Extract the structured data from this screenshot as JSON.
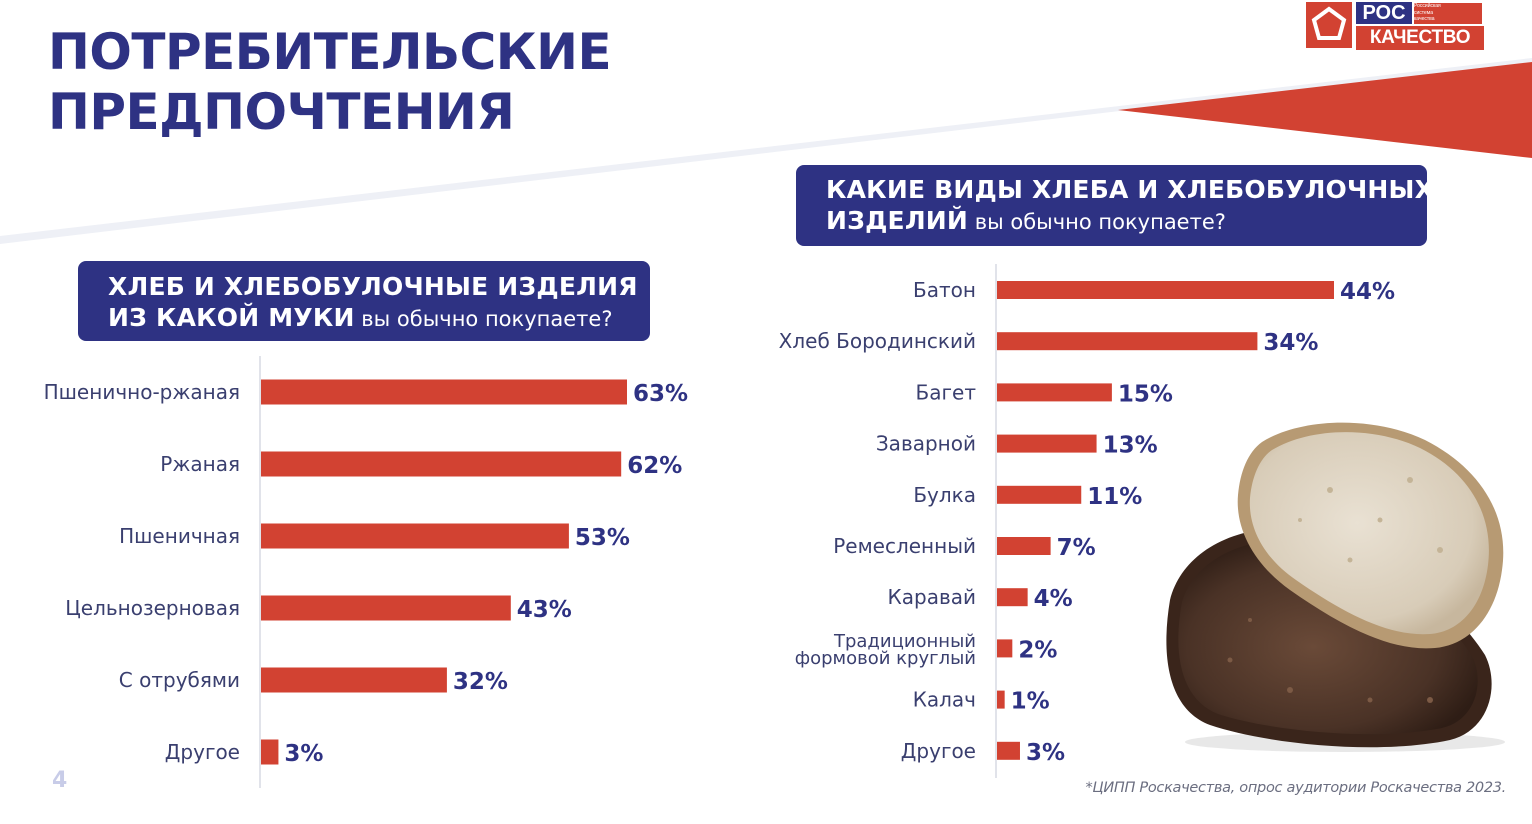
{
  "colors": {
    "navy": "#2e3283",
    "red": "#d24232",
    "label": "#3a3f6f",
    "page_number": "#c8cce8"
  },
  "title": {
    "line1": "ПОТРЕБИТЕЛЬСКИЕ",
    "line2": "ПРЕДПОЧТЕНИЯ"
  },
  "logo": {
    "ros": "РОС",
    "kachestvo": "КАЧЕСТВО",
    "small_line1": "Российская",
    "small_line2": "система",
    "small_line3": "качества"
  },
  "left_question": {
    "line1": "ХЛЕБ И ХЛЕБОБУЛОЧНЫЕ ИЗДЕЛИЯ",
    "line2_bold": "ИЗ КАКОЙ МУКИ",
    "line2_regular": " вы обычно покупаете?"
  },
  "right_question": {
    "line1": "КАКИЕ ВИДЫ ХЛЕБА И ХЛЕБОБУЛОЧНЫХ",
    "line2_bold": "ИЗДЕЛИЙ",
    "line2_regular": " вы обычно покупаете?"
  },
  "chart_data": [
    {
      "type": "bar",
      "orientation": "horizontal",
      "categories": [
        "Пшенично-ржаная",
        "Ржаная",
        "Пшеничная",
        "Цельнозерновая",
        "С отрубями",
        "Другое"
      ],
      "values": [
        63,
        62,
        53,
        43,
        32,
        3
      ],
      "value_labels": [
        "63%",
        "62%",
        "53%",
        "43%",
        "32%",
        "3%"
      ],
      "xlim": [
        0,
        63
      ],
      "grid": false,
      "legend": "none"
    },
    {
      "type": "bar",
      "orientation": "horizontal",
      "categories": [
        "Батон",
        "Хлеб Бородинский",
        "Багет",
        "Заварной",
        "Булка",
        "Ремесленный",
        "Каравай",
        "Традиционный формовой круглый",
        "Калач",
        "Другое"
      ],
      "category_lines": [
        [
          "Батон"
        ],
        [
          "Хлеб Бородинский"
        ],
        [
          "Багет"
        ],
        [
          "Заварной"
        ],
        [
          "Булка"
        ],
        [
          "Ремесленный"
        ],
        [
          "Каравай"
        ],
        [
          "Традиционный",
          "формовой круглый"
        ],
        [
          "Калач"
        ],
        [
          "Другое"
        ]
      ],
      "values": [
        44,
        34,
        15,
        13,
        11,
        7,
        4,
        2,
        1,
        3
      ],
      "value_labels": [
        "44%",
        "34%",
        "15%",
        "13%",
        "11%",
        "7%",
        "4%",
        "2%",
        "1%",
        "3%"
      ],
      "xlim": [
        0,
        44
      ],
      "grid": false,
      "legend": "none"
    }
  ],
  "page_number": "4",
  "source": "*ЦИПП Роскачества, опрос аудитории Роскачества 2023."
}
